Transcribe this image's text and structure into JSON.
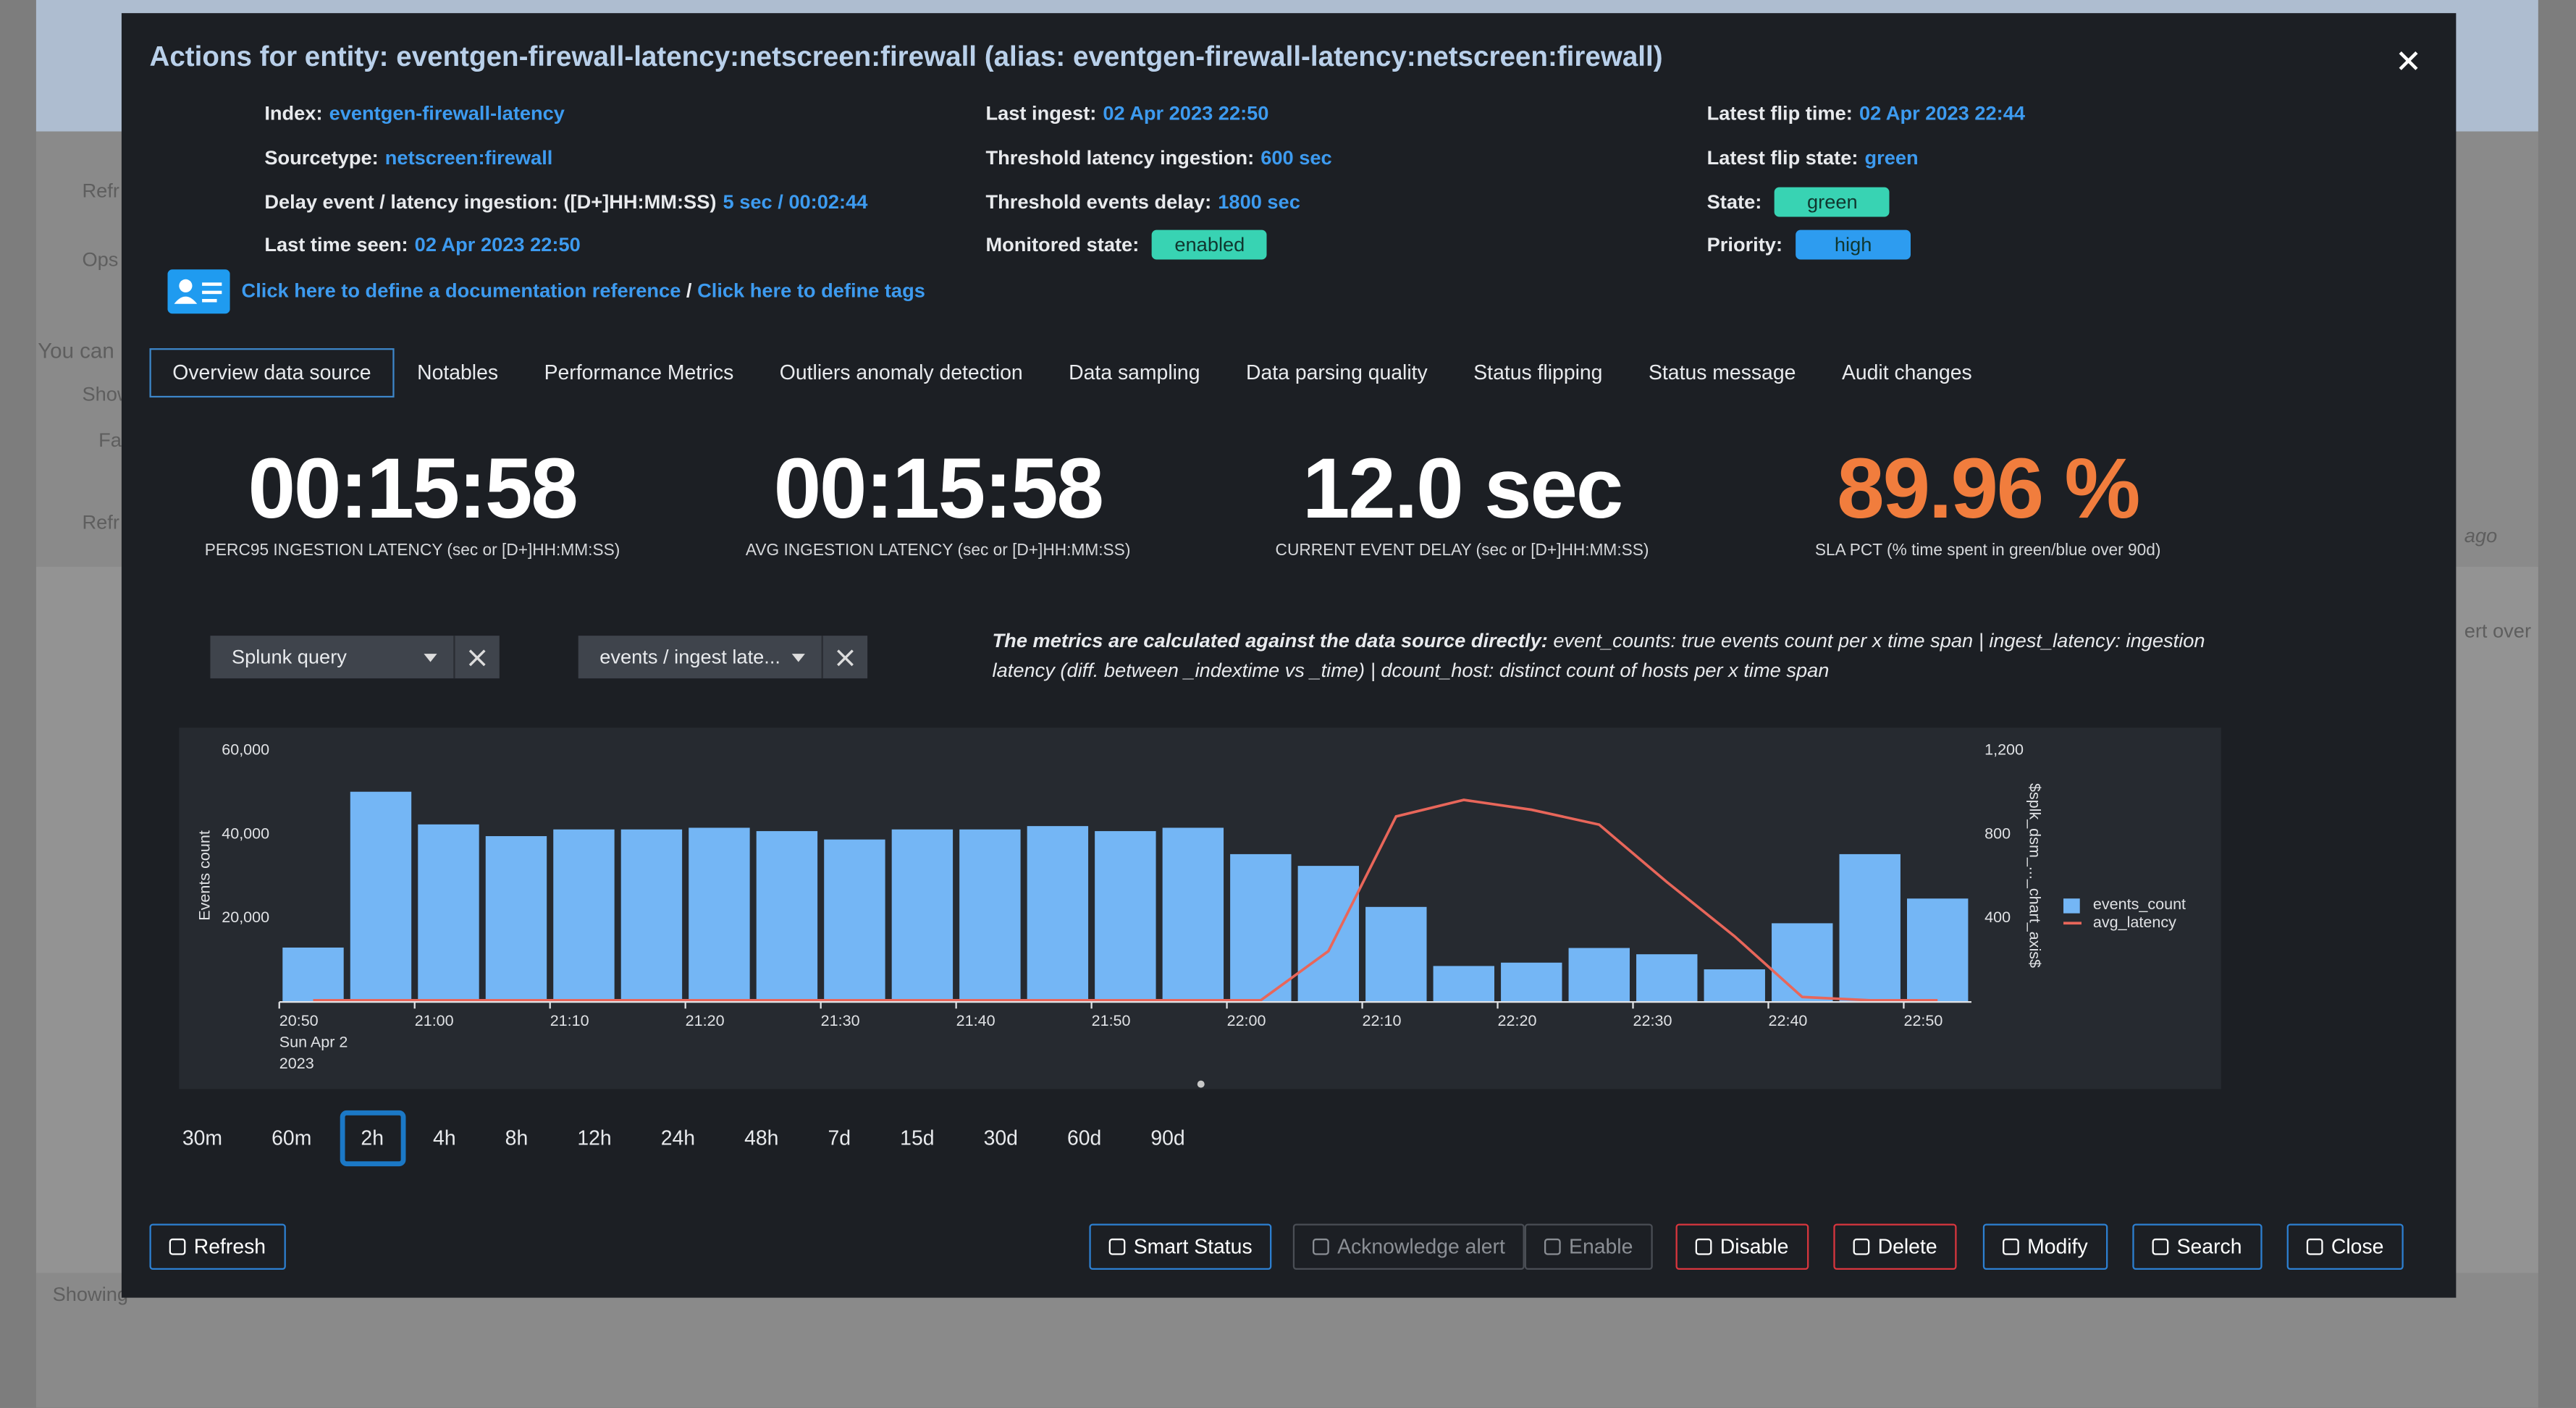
{
  "background": {
    "texts": [
      "Refr",
      "Ops",
      "You can",
      "Show",
      "Fa",
      "Refr",
      "ago",
      "ert over",
      "Showing"
    ]
  },
  "modal": {
    "title": "Actions for entity: eventgen-firewall-latency:netscreen:firewall (alias: eventgen-firewall-latency:netscreen:firewall)",
    "info": [
      [
        {
          "label": "Index:",
          "value": "eventgen-firewall-latency"
        },
        {
          "label": "Sourcetype:",
          "value": "netscreen:firewall"
        },
        {
          "label": "Delay event / latency ingestion: ([D+]HH:MM:SS)",
          "value": "5 sec / 00:02:44"
        },
        {
          "label": "Last time seen:",
          "value": "02 Apr 2023 22:50"
        }
      ],
      [
        {
          "label": "Last ingest:",
          "value": "02 Apr 2023 22:50"
        },
        {
          "label": "Threshold latency ingestion:",
          "value": "600 sec"
        },
        {
          "label": "Threshold events delay:",
          "value": "1800 sec"
        },
        {
          "label": "Monitored state:",
          "value": "enabled",
          "badge": "#38d3b3"
        }
      ],
      [
        {
          "label": "Latest flip time:",
          "value": "02 Apr 2023 22:44"
        },
        {
          "label": "Latest flip state:",
          "value": "green"
        },
        {
          "label": "State:",
          "value": "green",
          "badge": "#38d3b3"
        },
        {
          "label": "Priority:",
          "value": "high",
          "badge": "#2d9cf0"
        }
      ]
    ],
    "links": {
      "doc": "Click here to define a documentation reference",
      "separator": "/",
      "tags": "Click here to define tags"
    },
    "tabs": [
      "Overview data source",
      "Notables",
      "Performance Metrics",
      "Outliers anomaly detection",
      "Data sampling",
      "Data parsing quality",
      "Status flipping",
      "Status message",
      "Audit changes"
    ],
    "active_tab": 0,
    "kpis": [
      {
        "value": "00:15:58",
        "label": "PERC95 INGESTION LATENCY (sec or [D+]HH:MM:SS)",
        "color": "#ffffff"
      },
      {
        "value": "00:15:58",
        "label": "AVG INGESTION LATENCY (sec or [D+]HH:MM:SS)",
        "color": "#ffffff"
      },
      {
        "value": "12.0 sec",
        "label": "CURRENT EVENT DELAY (sec or [D+]HH:MM:SS)",
        "color": "#ffffff"
      },
      {
        "value": "89.96 %",
        "label": "SLA PCT (% time spent in green/blue over 90d)",
        "color": "#f17d3d"
      }
    ],
    "filters": [
      "Splunk query",
      "events / ingest late..."
    ],
    "description": {
      "bold": "The metrics are calculated against the data source directly:",
      "text": " event_counts: true events count per x time span | ingest_latency: ingestion latency (diff. between _indextime vs _time) | dcount_host: distinct count of hosts per x time span"
    },
    "time_ranges": [
      "30m",
      "60m",
      "2h",
      "4h",
      "8h",
      "12h",
      "24h",
      "48h",
      "7d",
      "15d",
      "30d",
      "60d",
      "90d"
    ],
    "selected_range": 2,
    "buttons": [
      {
        "label": "Refresh",
        "color": "#2d80d2"
      },
      {
        "label": "Smart Status",
        "color": "#2d80d2"
      },
      {
        "label": "Acknowledge alert",
        "color": "#4a4e55"
      },
      {
        "label": "Enable",
        "color": "#4a4e55"
      },
      {
        "label": "Disable",
        "color": "#d9363e"
      },
      {
        "label": "Delete",
        "color": "#d9363e"
      },
      {
        "label": "Modify",
        "color": "#2d80d2"
      },
      {
        "label": "Search",
        "color": "#2d80d2"
      },
      {
        "label": "Close",
        "color": "#2d80d2"
      }
    ]
  },
  "chart_data": {
    "type": "bar",
    "categories": [
      "20:50",
      null,
      "21:00",
      null,
      "21:10",
      null,
      "21:20",
      null,
      "21:30",
      null,
      "21:40",
      null,
      "21:50",
      null,
      "22:00",
      null,
      "22:10",
      null,
      "22:20",
      null,
      "22:30",
      null,
      "22:40",
      null,
      "22:50"
    ],
    "x_date_label": "Sun Apr 2",
    "x_year_label": "2023",
    "ylabel": "Events count",
    "y2label": "$splk_dsm_..._chart_axis$",
    "series": [
      {
        "name": "events_count",
        "color": "#74b6f5",
        "type": "bar",
        "values": [
          13000,
          50200,
          42400,
          39600,
          41200,
          41200,
          41600,
          40800,
          38800,
          41200,
          41200,
          42000,
          40800,
          41600,
          35300,
          32500,
          22700,
          8600,
          9400,
          12900,
          11400,
          7800,
          18800,
          35300,
          24700
        ]
      },
      {
        "name": "avg_latency",
        "color": "#e8665a",
        "type": "line",
        "axis": "y2",
        "values": [
          8,
          8,
          8,
          8,
          8,
          8,
          8,
          8,
          8,
          8,
          8,
          8,
          8,
          8,
          8,
          243,
          886,
          965,
          918,
          847,
          573,
          314,
          24,
          8,
          8
        ]
      }
    ],
    "ylim": [
      0,
      60000
    ],
    "yticks": [
      {
        "value": 20000,
        "label": "20,000"
      },
      {
        "value": 40000,
        "label": "40,000"
      },
      {
        "value": 60000,
        "label": "60,000"
      }
    ],
    "y2lim": [
      0,
      1200
    ],
    "y2ticks": [
      400,
      800,
      {
        "value": 1200,
        "label": "1,200"
      }
    ]
  }
}
